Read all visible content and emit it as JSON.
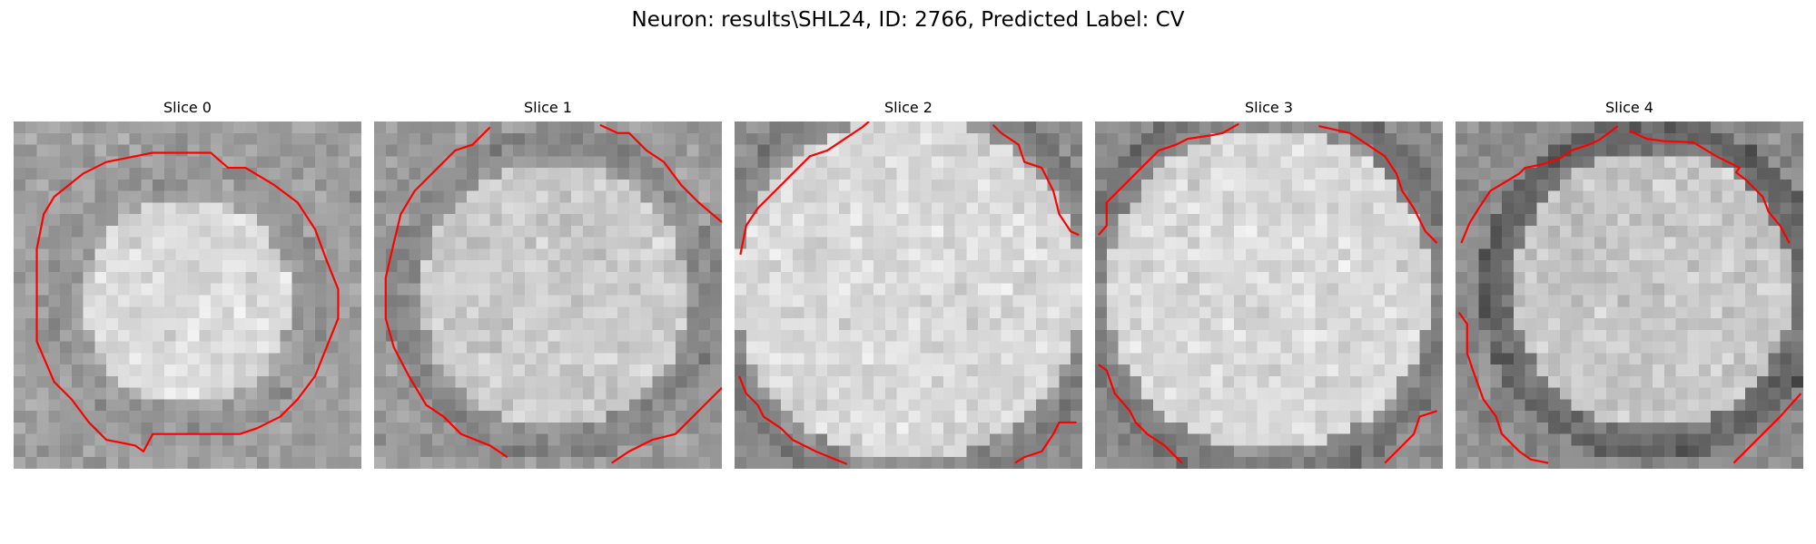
{
  "figure": {
    "title": "Neuron: results\\SHL24, ID: 2766, Predicted Label: CV"
  },
  "contour_color": "#ff0000",
  "panels": [
    {
      "title": "Slice 0"
    },
    {
      "title": "Slice 1"
    },
    {
      "title": "Slice 2"
    },
    {
      "title": "Slice 3"
    },
    {
      "title": "Slice 4"
    }
  ]
}
